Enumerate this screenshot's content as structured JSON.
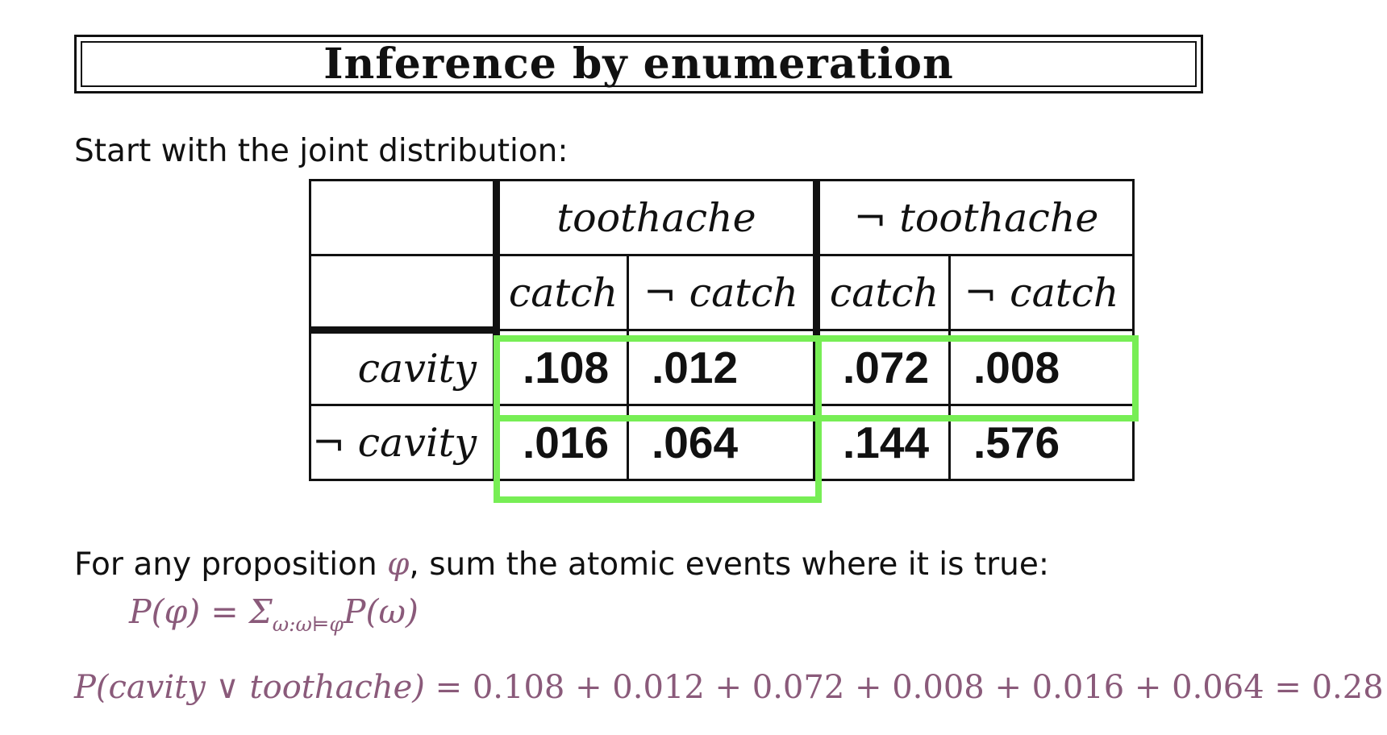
{
  "slide": {
    "title": "Inference by enumeration",
    "intro": "Start with the joint distribution:",
    "prop_before": "For any proposition ",
    "prop_symbol": "φ",
    "prop_after": ", sum the atomic events where it is true:",
    "formula_lhs": "P(φ) = Σ",
    "formula_sub": "ω:ω⊨φ",
    "formula_rhs": "P(ω)",
    "calc_lhs": "P(cavity ∨ toothache)",
    "calc_rhs": " = 0.108 + 0.012 + 0.072 + 0.008 + 0.016 + 0.064 = 0.28",
    "highlight_color": "#77ee55",
    "text_accent_color": "#8a5a7a"
  },
  "table": {
    "col_groups": [
      "toothache",
      "¬ toothache"
    ],
    "sub_cols": [
      "catch",
      "¬ catch",
      "catch",
      "¬ catch"
    ],
    "rows": [
      {
        "label": "cavity",
        "values": [
          ".108",
          ".012",
          ".072",
          ".008"
        ]
      },
      {
        "label": "¬ cavity",
        "values": [
          ".016",
          ".064",
          ".144",
          ".576"
        ]
      }
    ]
  }
}
